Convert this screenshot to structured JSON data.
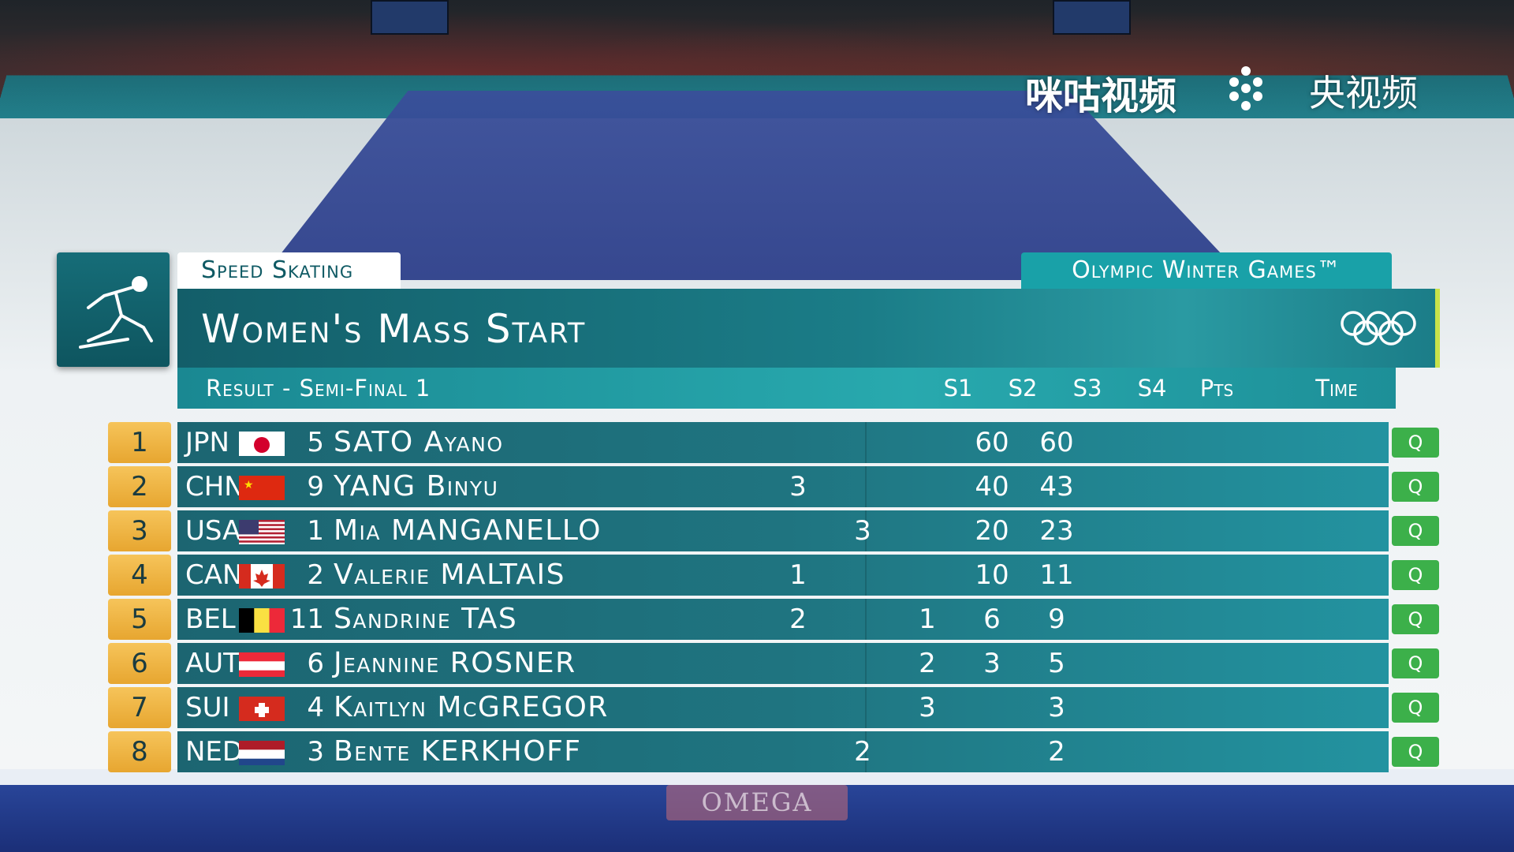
{
  "watermark": {
    "brand1": "咪咕视频",
    "brand2": "央视频"
  },
  "sponsor": "OMEGA",
  "graphic": {
    "sport": "Speed Skating",
    "games": "Olympic Winter Games™",
    "event": "Women's Mass Start",
    "round": "Result - Semi-Final 1",
    "columns": {
      "s1": "S1",
      "s2": "S2",
      "s3": "S3",
      "s4": "S4",
      "pts": "Pts",
      "time": "Time"
    }
  },
  "results": [
    {
      "rank": "1",
      "noc": "JPN",
      "flag": "jpn",
      "bib": "5",
      "name": "SATO Ayano",
      "s1": "",
      "s2": "",
      "s3": "",
      "s4": "60",
      "pts": "60",
      "time": "",
      "q": "Q"
    },
    {
      "rank": "2",
      "noc": "CHN",
      "flag": "chn",
      "bib": "9",
      "name": "YANG Binyu",
      "s1": "3",
      "s2": "",
      "s3": "",
      "s4": "40",
      "pts": "43",
      "time": "",
      "q": "Q"
    },
    {
      "rank": "3",
      "noc": "USA",
      "flag": "usa",
      "bib": "1",
      "name": "Mia MANGANELLO",
      "s1": "",
      "s2": "3",
      "s3": "",
      "s4": "20",
      "pts": "23",
      "time": "",
      "q": "Q"
    },
    {
      "rank": "4",
      "noc": "CAN",
      "flag": "can",
      "bib": "2",
      "name": "Valerie MALTAIS",
      "s1": "1",
      "s2": "",
      "s3": "",
      "s4": "10",
      "pts": "11",
      "time": "",
      "q": "Q"
    },
    {
      "rank": "5",
      "noc": "BEL",
      "flag": "bel",
      "bib": "11",
      "name": "Sandrine TAS",
      "s1": "2",
      "s2": "",
      "s3": "1",
      "s4": "6",
      "pts": "9",
      "time": "",
      "q": "Q"
    },
    {
      "rank": "6",
      "noc": "AUT",
      "flag": "aut",
      "bib": "6",
      "name": "Jeannine ROSNER",
      "s1": "",
      "s2": "",
      "s3": "2",
      "s4": "3",
      "pts": "5",
      "time": "",
      "q": "Q"
    },
    {
      "rank": "7",
      "noc": "SUI",
      "flag": "sui",
      "bib": "4",
      "name": "Kaitlyn McGREGOR",
      "s1": "",
      "s2": "",
      "s3": "3",
      "s4": "",
      "pts": "3",
      "time": "",
      "q": "Q"
    },
    {
      "rank": "8",
      "noc": "NED",
      "flag": "ned",
      "bib": "3",
      "name": "Bente KERKHOFF",
      "s1": "",
      "s2": "2",
      "s3": "",
      "s4": "",
      "pts": "2",
      "time": "",
      "q": "Q"
    }
  ],
  "colors": {
    "panel": "#1b7d88",
    "accent": "#28a9ae",
    "rank": "#f0b444",
    "qualified": "#3cb04a"
  }
}
